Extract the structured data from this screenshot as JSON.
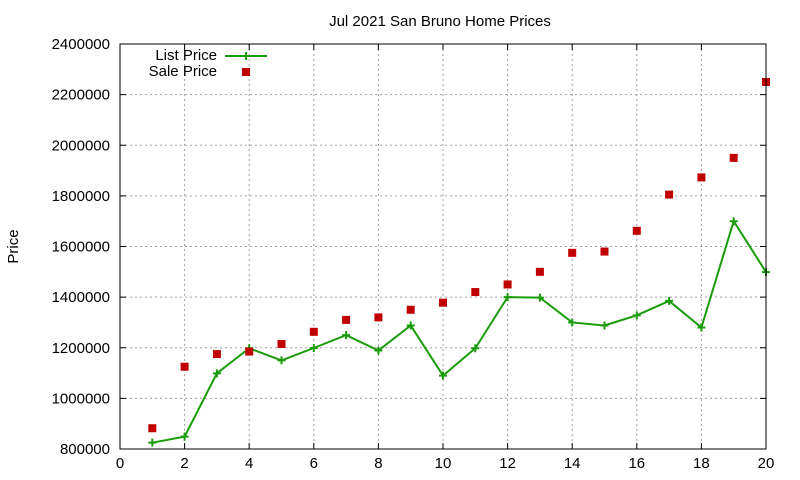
{
  "chart_data": {
    "type": "line",
    "title": "Jul 2021 San Bruno Home Prices",
    "xlabel": "",
    "ylabel": "Price",
    "xlim": [
      0,
      20
    ],
    "ylim": [
      800000,
      2400000
    ],
    "x_ticks": [
      "0",
      "2",
      "4",
      "6",
      "8",
      "10",
      "12",
      "14",
      "16",
      "18",
      "20"
    ],
    "y_ticks": [
      "800000",
      "1000000",
      "1200000",
      "1400000",
      "1600000",
      "1800000",
      "2000000",
      "2200000",
      "2400000"
    ],
    "grid": true,
    "legend_position": "top-left",
    "x": [
      1,
      2,
      3,
      4,
      5,
      6,
      7,
      8,
      9,
      10,
      11,
      12,
      13,
      14,
      15,
      16,
      17,
      18,
      19,
      20
    ],
    "series": [
      {
        "name": "List Price",
        "style": "line-with-plus-markers",
        "color": "#1a9c0a",
        "values": [
          825000,
          849000,
          1099000,
          1198000,
          1150000,
          1199000,
          1250000,
          1189000,
          1288000,
          1090000,
          1198000,
          1400000,
          1398000,
          1300000,
          1288000,
          1328000,
          1385000,
          1280000,
          1700000,
          1499000
        ]
      },
      {
        "name": "Sale Price",
        "style": "square-markers",
        "color": "#c00000",
        "values": [
          882000,
          1125000,
          1175000,
          1185000,
          1215000,
          1263000,
          1310000,
          1320000,
          1350000,
          1378000,
          1420000,
          1450000,
          1500000,
          1575000,
          1580000,
          1662000,
          1805000,
          1873000,
          1950000,
          2250000
        ]
      }
    ]
  }
}
